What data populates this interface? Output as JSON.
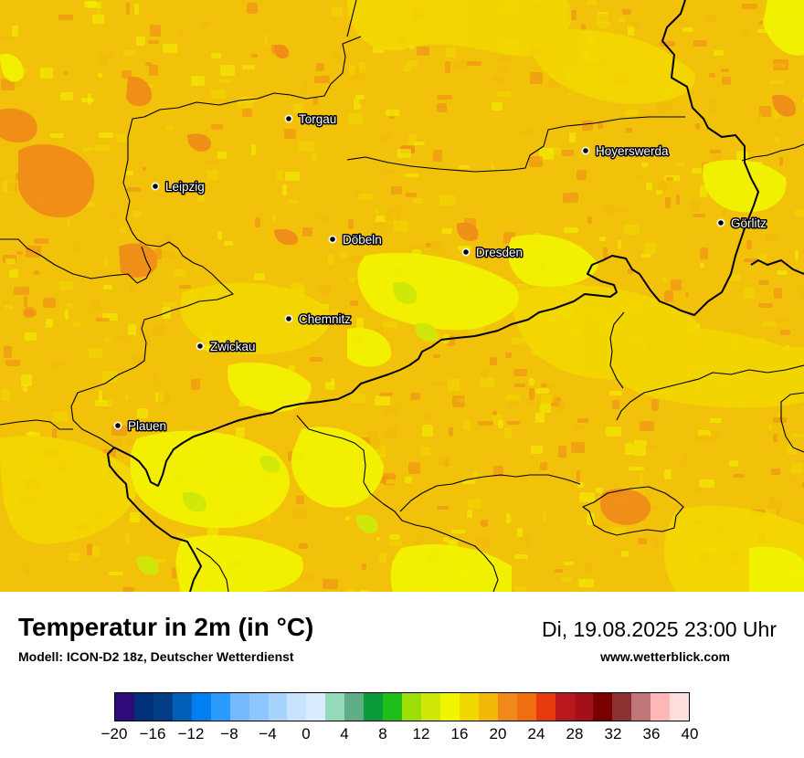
{
  "map": {
    "cities": [
      {
        "name": "Torgau"
      },
      {
        "name": "Hoyerswerda"
      },
      {
        "name": "Leipzig"
      },
      {
        "name": "Görlitz"
      },
      {
        "name": "Döbeln"
      },
      {
        "name": "Dresden"
      },
      {
        "name": "Chemnitz"
      },
      {
        "name": "Zwickau"
      },
      {
        "name": "Plauen"
      }
    ]
  },
  "footer": {
    "title": "Temperatur in 2m (in °C)",
    "model": "Modell: ICON-D2 18z, Deutscher Wetterdienst",
    "datetime": "Di, 19.08.2025 23:00 Uhr",
    "website": "www.wetterblick.com"
  },
  "legend": {
    "unit": "°C",
    "min": -20,
    "max": 40,
    "colors": [
      "#2e0a7a",
      "#00307a",
      "#003d85",
      "#0060b8",
      "#0080f0",
      "#2b9cff",
      "#75b9ff",
      "#8ec7ff",
      "#a9d3ff",
      "#c8e3ff",
      "#daecff",
      "#94dab9",
      "#5fae87",
      "#0a9b3a",
      "#1fbf1a",
      "#9cde07",
      "#cfe809",
      "#f2f500",
      "#f2d800",
      "#f2b908",
      "#f0891a",
      "#f06d10",
      "#e63a0c",
      "#b8171b",
      "#a31019",
      "#7a0000",
      "#8c3032",
      "#c07678",
      "#ffb6b6",
      "#ffdede"
    ],
    "tick_labels": [
      "−20",
      "−16",
      "−12",
      "−8",
      "−4",
      "0",
      "4",
      "8",
      "12",
      "16",
      "20",
      "24",
      "28",
      "32",
      "36",
      "40"
    ]
  },
  "colors": {
    "base": "#f2b908",
    "warm": "#f0891a",
    "mild": "#f2d800",
    "cool": "#f2f500",
    "cooler": "#cfe809"
  }
}
